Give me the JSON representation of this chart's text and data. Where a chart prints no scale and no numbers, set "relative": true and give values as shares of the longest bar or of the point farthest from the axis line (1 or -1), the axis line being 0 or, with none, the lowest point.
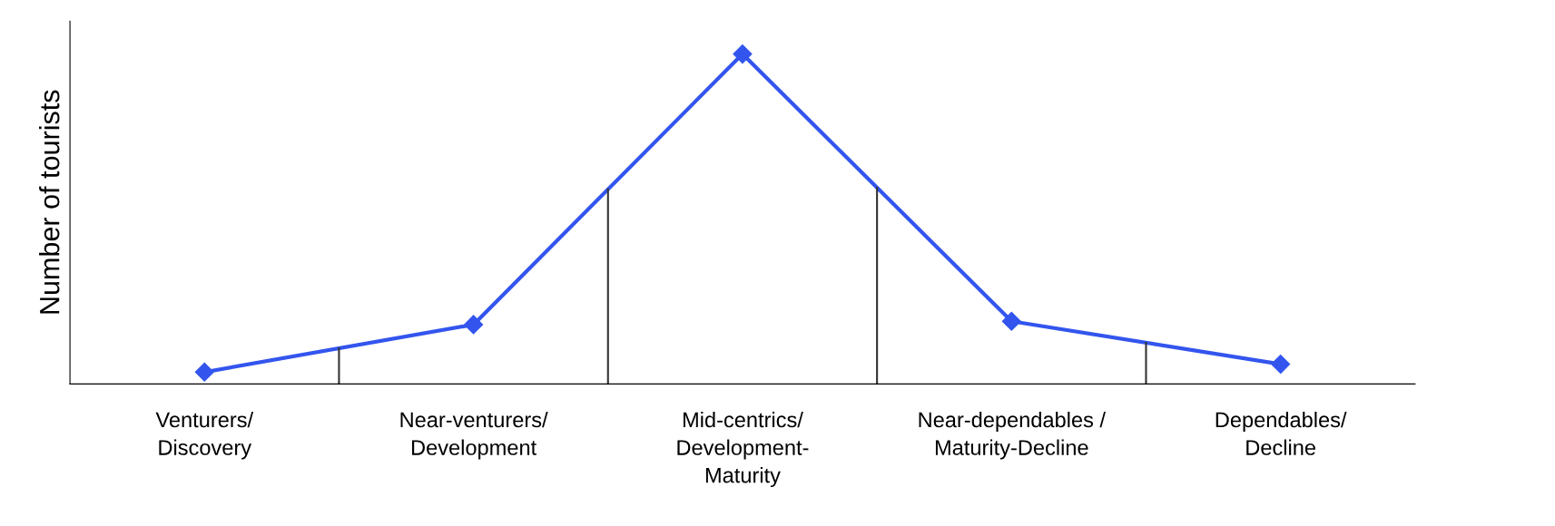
{
  "chart_data": {
    "type": "line",
    "ylabel": "Number of tourists",
    "categories": [
      "Venturers/\nDiscovery",
      "Near-venturers/\nDevelopment",
      "Mid-centrics/\nDevelopment-\nMaturity",
      "Near-dependables /\nMaturity-Decline",
      "Dependables/\nDecline"
    ],
    "series": [
      {
        "color": "#3355ee",
        "values": [
          0.036,
          0.18,
          1,
          0.19,
          0.06
        ]
      }
    ],
    "relative": true,
    "marker": "diamond",
    "line_style": "solid",
    "grid": false,
    "legend": false
  }
}
